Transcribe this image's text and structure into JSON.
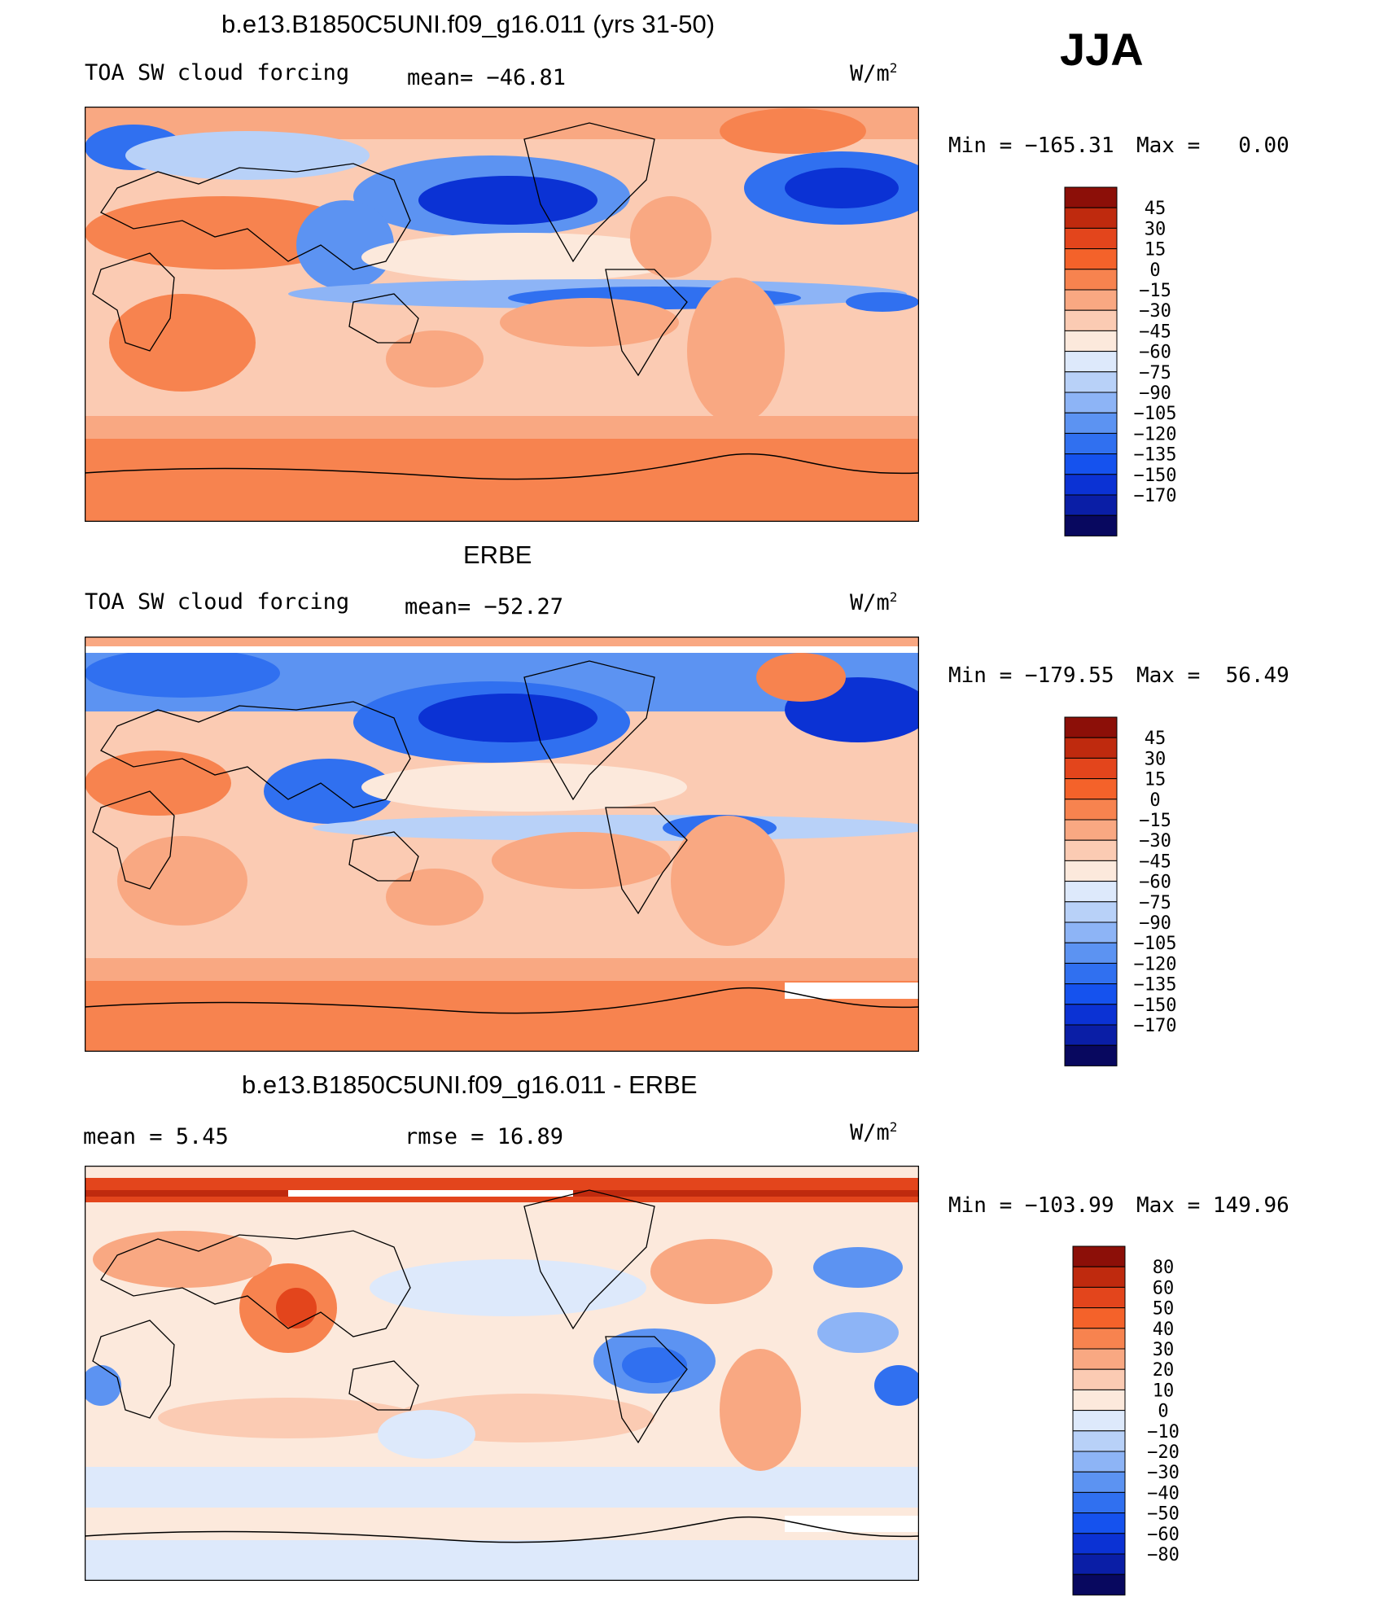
{
  "season": "JJA",
  "colorbar_colors": [
    "#08085f",
    "#0a1ea6",
    "#0b32d4",
    "#1552ee",
    "#3070f0",
    "#5c93f2",
    "#8db4f6",
    "#b8d1f8",
    "#dde9fb",
    "#fce9dc",
    "#fbcbb3",
    "#f9a882",
    "#f7834f",
    "#f4622a",
    "#e3451c",
    "#bf2a0e",
    "#8c0f08"
  ],
  "chart_data": [
    {
      "type": "heatmap",
      "title": "b.e13.B1850C5UNI.f09_g16.011 (yrs 31-50)",
      "field_label": "TOA SW cloud forcing",
      "mean_text": "mean= −46.81",
      "units_base": "W/m",
      "units_exp": "2",
      "min_text": "Min = −165.31",
      "max_text": "Max =   0.00",
      "colorbar_labels": [
        "45",
        "30",
        "15",
        "0",
        "−15",
        "−30",
        "−45",
        "−60",
        "−75",
        "−90",
        "−105",
        "−120",
        "−135",
        "−150",
        "−170"
      ],
      "value_range": [
        -165.31,
        0.0
      ]
    },
    {
      "type": "heatmap",
      "title": "ERBE",
      "field_label": "TOA SW cloud forcing",
      "mean_text": "mean= −52.27",
      "units_base": "W/m",
      "units_exp": "2",
      "min_text": "Min = −179.55",
      "max_text": "Max =  56.49",
      "colorbar_labels": [
        "45",
        "30",
        "15",
        "0",
        "−15",
        "−30",
        "−45",
        "−60",
        "−75",
        "−90",
        "−105",
        "−120",
        "−135",
        "−150",
        "−170"
      ],
      "value_range": [
        -179.55,
        56.49
      ]
    },
    {
      "type": "heatmap",
      "title": "b.e13.B1850C5UNI.f09_g16.011 - ERBE",
      "mean_text": "mean =    5.45",
      "rmse_text": "rmse =   16.89",
      "units_base": "W/m",
      "units_exp": "2",
      "min_text": "Min = −103.99",
      "max_text": "Max = 149.96",
      "colorbar_labels": [
        "80",
        "60",
        "50",
        "40",
        "30",
        "20",
        "10",
        "0",
        "−10",
        "−20",
        "−30",
        "−40",
        "−50",
        "−60",
        "−80"
      ],
      "value_range": [
        -103.99,
        149.96
      ]
    }
  ]
}
